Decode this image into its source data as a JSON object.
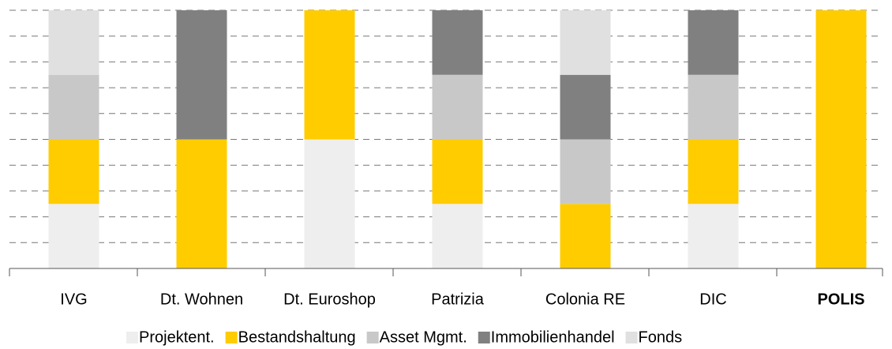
{
  "chart_data": {
    "type": "stacked_bar",
    "categories": [
      "IVG",
      "Dt. Wohnen",
      "Dt. Euroshop",
      "Patrizia",
      "Colonia RE",
      "DIC",
      "POLIS"
    ],
    "series": [
      {
        "name": "Projektent.",
        "color": "#eeeeee",
        "values": [
          25,
          0,
          50,
          25,
          0,
          25,
          0
        ]
      },
      {
        "name": "Bestandshaltung",
        "color": "#ffcc00",
        "values": [
          25,
          50,
          50,
          25,
          25,
          25,
          100
        ]
      },
      {
        "name": "Asset Mgmt.",
        "color": "#c8c8c8",
        "values": [
          25,
          0,
          0,
          25,
          25,
          25,
          0
        ]
      },
      {
        "name": "Immobilienhandel",
        "color": "#808080",
        "values": [
          0,
          50,
          0,
          25,
          25,
          25,
          0
        ]
      },
      {
        "name": "Fonds",
        "color": "#e0e0e0",
        "values": [
          25,
          0,
          0,
          0,
          25,
          0,
          0
        ]
      }
    ],
    "ylim": [
      0,
      100
    ],
    "yticks": [
      0,
      10,
      20,
      30,
      40,
      50,
      60,
      70,
      80,
      90,
      100
    ],
    "grid": true,
    "legend": "bottom"
  }
}
